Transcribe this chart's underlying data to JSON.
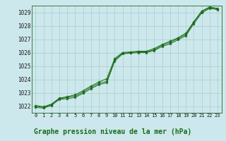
{
  "title": "Graphe pression niveau de la mer (hPa)",
  "xlabel_hours": [
    0,
    1,
    2,
    3,
    4,
    5,
    6,
    7,
    8,
    9,
    10,
    11,
    12,
    13,
    14,
    15,
    16,
    17,
    18,
    19,
    20,
    21,
    22,
    23
  ],
  "line1": [
    1021.9,
    1021.85,
    1022.05,
    1022.5,
    1022.55,
    1022.65,
    1022.95,
    1023.3,
    1023.6,
    1023.75,
    1025.35,
    1025.9,
    1025.95,
    1026.0,
    1026.0,
    1026.15,
    1026.45,
    1026.65,
    1026.95,
    1027.25,
    1028.15,
    1028.95,
    1029.3,
    1029.2
  ],
  "line2": [
    1022.0,
    1021.9,
    1022.1,
    1022.55,
    1022.65,
    1022.75,
    1023.05,
    1023.4,
    1023.7,
    1023.85,
    1025.45,
    1025.95,
    1026.0,
    1026.05,
    1026.05,
    1026.2,
    1026.55,
    1026.75,
    1027.05,
    1027.35,
    1028.25,
    1029.05,
    1029.35,
    1029.25
  ],
  "line3": [
    1022.05,
    1021.95,
    1022.15,
    1022.6,
    1022.7,
    1022.85,
    1023.15,
    1023.5,
    1023.8,
    1024.05,
    1025.55,
    1026.0,
    1026.05,
    1026.1,
    1026.1,
    1026.3,
    1026.6,
    1026.85,
    1027.1,
    1027.45,
    1028.3,
    1029.1,
    1029.4,
    1029.3
  ],
  "bg_color": "#cce8ec",
  "grid_color": "#aacccc",
  "line_color": "#1a6b1a",
  "marker_color": "#1a6b1a",
  "ylim_min": 1021.5,
  "ylim_max": 1029.5,
  "yticks": [
    1022,
    1023,
    1024,
    1025,
    1026,
    1027,
    1028,
    1029
  ],
  "title_color": "#1a6b1a",
  "title_fontsize": 7.0,
  "tick_fontsize": 5.5,
  "xtick_fontsize": 5.0
}
